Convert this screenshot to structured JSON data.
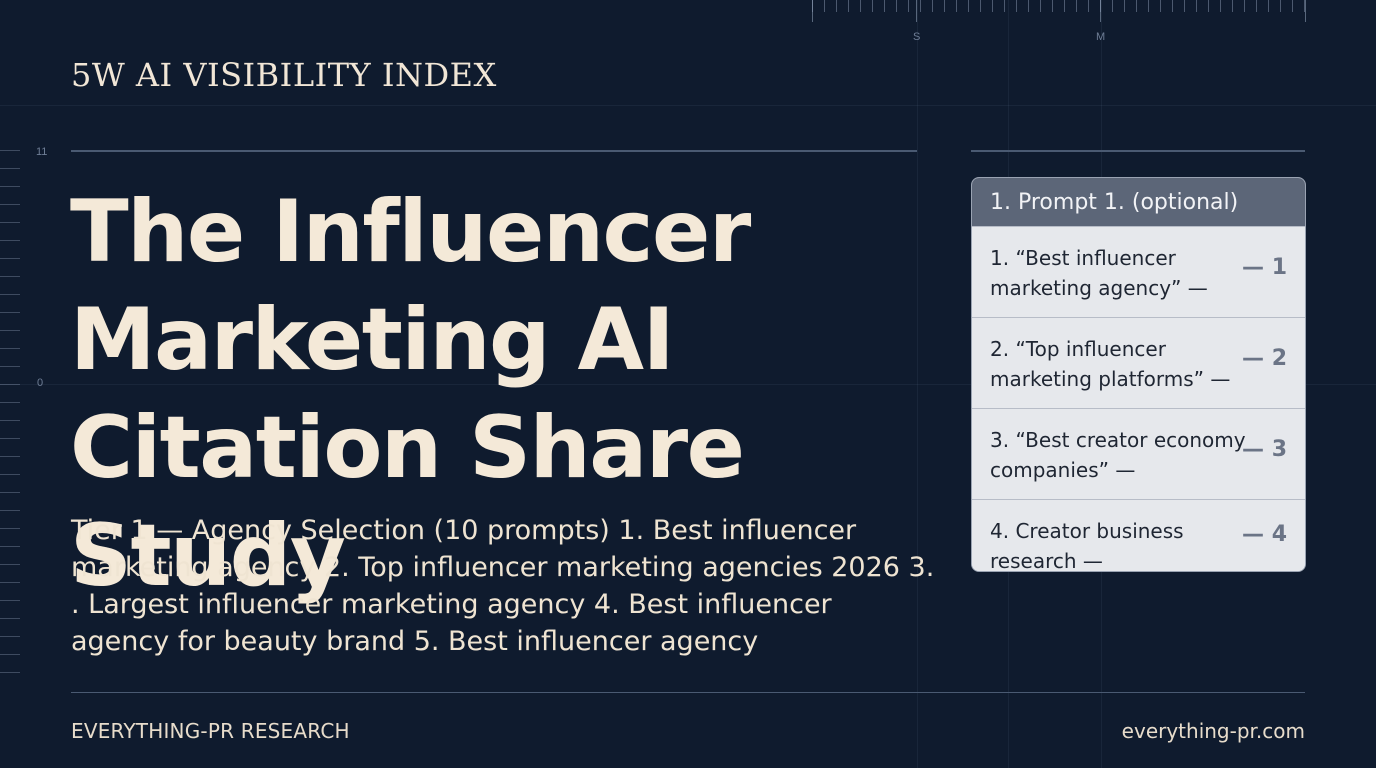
{
  "ruler": {
    "top_marks": [
      "S",
      "M"
    ],
    "left_marks": [
      "11",
      "0"
    ]
  },
  "header": {
    "kicker": "5W AI VISIBILITY INDEX"
  },
  "headline": {
    "lines": [
      "The Influencer",
      "Marketing AI",
      "Citation Share Study"
    ]
  },
  "body": {
    "lines": [
      "Tier 1 — Agency Selection (10 prompts) 1. Best influencer",
      "marketing agency 2. Top influencer marketing agencies 2026 3.",
      ". Largest influencer marketing agency 4. Best influencer",
      "agency for beauty brand 5. Best influencer agency"
    ]
  },
  "panel": {
    "title": "1. Prompt 1. (optional)",
    "rows": [
      {
        "text": "1.  “Best influencer marketing agency” —",
        "num": "— 1"
      },
      {
        "text": "2. “Top influencer marketing platforms” —",
        "num": "— 2"
      },
      {
        "text": "3. “Best creator economy companies” —",
        "num": "— 3"
      },
      {
        "text": "4. Creator business research —",
        "num": "— 4"
      }
    ]
  },
  "footer": {
    "left": "EVERYTHING-PR RESEARCH",
    "right": "everything-pr.com"
  },
  "colors": {
    "background": "#0f1b2e",
    "text_cream": "#f4e9d8",
    "panel_bg": "#e3e5ea",
    "panel_head": "#5c6678"
  }
}
